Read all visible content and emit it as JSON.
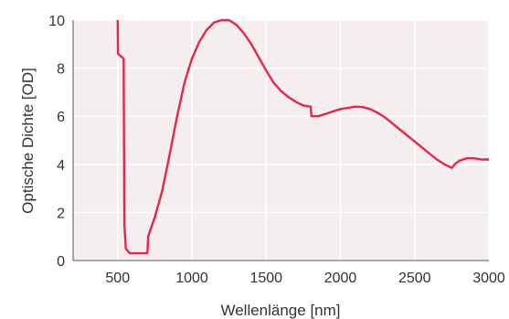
{
  "chart_data": {
    "type": "line",
    "title": "",
    "xlabel": "Wellenlänge [nm]",
    "ylabel": "Optische Dichte [OD]",
    "xlim": [
      200,
      3000
    ],
    "ylim": [
      0,
      10
    ],
    "grid": true,
    "x_ticks": [
      {
        "value": 500,
        "label": "500"
      },
      {
        "value": 1000,
        "label": "1000"
      },
      {
        "value": 1500,
        "label": "1500"
      },
      {
        "value": 2000,
        "label": "2000"
      },
      {
        "value": 2500,
        "label": "2500"
      },
      {
        "value": 3000,
        "label": "3000"
      }
    ],
    "y_ticks": [
      {
        "value": 0,
        "label": "0"
      },
      {
        "value": 2,
        "label": "2"
      },
      {
        "value": 4,
        "label": "4"
      },
      {
        "value": 6,
        "label": "6"
      },
      {
        "value": 8,
        "label": "8"
      },
      {
        "value": 10,
        "label": "10"
      }
    ],
    "colors": {
      "line": "#e8254a",
      "fill": "#f4eeee",
      "grid": "#ffffff",
      "axis": "#555555"
    },
    "series": [
      {
        "points": [
          [
            500,
            10
          ],
          [
            502,
            8.6
          ],
          [
            540,
            8.4
          ],
          [
            545,
            1.5
          ],
          [
            555,
            0.5
          ],
          [
            580,
            0.3
          ],
          [
            700,
            0.3
          ],
          [
            705,
            1.0
          ],
          [
            750,
            1.8
          ],
          [
            800,
            2.9
          ],
          [
            850,
            4.4
          ],
          [
            900,
            6.0
          ],
          [
            950,
            7.4
          ],
          [
            1000,
            8.4
          ],
          [
            1050,
            9.1
          ],
          [
            1100,
            9.6
          ],
          [
            1150,
            9.9
          ],
          [
            1200,
            10.05
          ],
          [
            1250,
            10.0
          ],
          [
            1300,
            9.8
          ],
          [
            1350,
            9.45
          ],
          [
            1400,
            9.0
          ],
          [
            1450,
            8.45
          ],
          [
            1500,
            7.9
          ],
          [
            1550,
            7.4
          ],
          [
            1600,
            7.05
          ],
          [
            1650,
            6.8
          ],
          [
            1700,
            6.6
          ],
          [
            1750,
            6.45
          ],
          [
            1800,
            6.4
          ],
          [
            1805,
            6.0
          ],
          [
            1850,
            6.0
          ],
          [
            1900,
            6.1
          ],
          [
            1950,
            6.2
          ],
          [
            2000,
            6.3
          ],
          [
            2050,
            6.35
          ],
          [
            2100,
            6.4
          ],
          [
            2150,
            6.38
          ],
          [
            2200,
            6.3
          ],
          [
            2250,
            6.15
          ],
          [
            2300,
            5.95
          ],
          [
            2350,
            5.7
          ],
          [
            2400,
            5.45
          ],
          [
            2450,
            5.2
          ],
          [
            2500,
            4.95
          ],
          [
            2550,
            4.7
          ],
          [
            2600,
            4.45
          ],
          [
            2650,
            4.2
          ],
          [
            2700,
            4.0
          ],
          [
            2750,
            3.85
          ],
          [
            2770,
            4.0
          ],
          [
            2800,
            4.15
          ],
          [
            2850,
            4.25
          ],
          [
            2900,
            4.25
          ],
          [
            2950,
            4.2
          ],
          [
            3000,
            4.2
          ]
        ]
      }
    ]
  }
}
